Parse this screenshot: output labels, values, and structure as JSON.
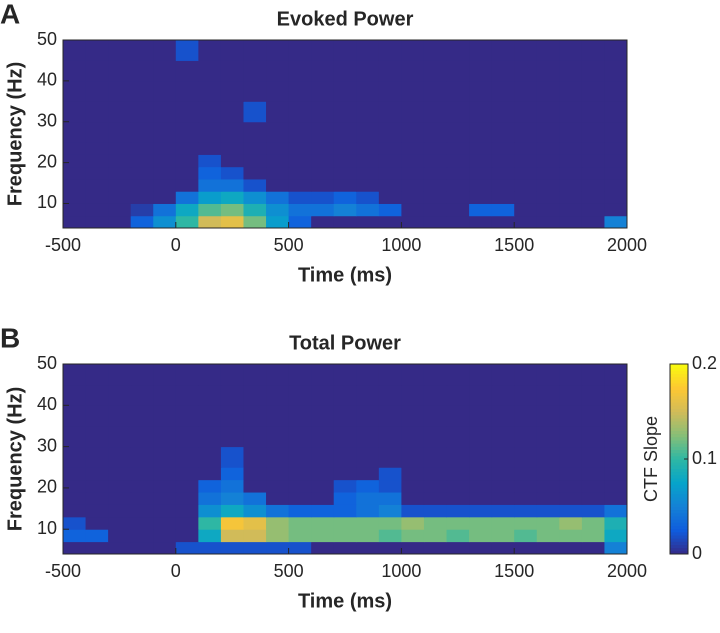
{
  "chart_data": [
    {
      "type": "heatmap",
      "panel_label": "A",
      "title": "Evoked Power",
      "xlabel": "Time (ms)",
      "ylabel": "Frequency (Hz)",
      "xlim": [
        -500,
        2000
      ],
      "xticks": [
        -500,
        0,
        500,
        1000,
        1500,
        2000
      ],
      "ylim": [
        4,
        50
      ],
      "yticks": [
        10,
        20,
        30,
        40,
        50
      ],
      "colormap": "parula",
      "clim": [
        0,
        0.2
      ],
      "x_edges": [
        -500,
        -400,
        -300,
        -200,
        -100,
        0,
        100,
        200,
        300,
        400,
        500,
        600,
        700,
        800,
        900,
        1000,
        1100,
        1200,
        1300,
        1400,
        1500,
        1600,
        1700,
        1800,
        1900,
        2000
      ],
      "y_edges": [
        4,
        7,
        10,
        13,
        16,
        19,
        22,
        25,
        30,
        35,
        40,
        45,
        50
      ],
      "z": [
        [
          0,
          0,
          0,
          0.03,
          0.06,
          0.1,
          0.15,
          0.16,
          0.12,
          0.07,
          0.03,
          0,
          0,
          0,
          0,
          0,
          0,
          0,
          0,
          0,
          0,
          0,
          0,
          0,
          0.05
        ],
        [
          0,
          0,
          0,
          0.01,
          0.04,
          0.08,
          0.11,
          0.12,
          0.09,
          0.06,
          0.04,
          0.04,
          0.05,
          0.04,
          0.03,
          0,
          0,
          0,
          0.03,
          0.03,
          0,
          0,
          0,
          0,
          0
        ],
        [
          0,
          0,
          0,
          0,
          0,
          0.04,
          0.07,
          0.08,
          0.06,
          0.04,
          0.02,
          0.02,
          0.03,
          0.02,
          0,
          0,
          0,
          0,
          0,
          0,
          0,
          0,
          0,
          0,
          0
        ],
        [
          0,
          0,
          0,
          0,
          0,
          0,
          0.04,
          0.04,
          0.02,
          0,
          0,
          0,
          0,
          0,
          0,
          0,
          0,
          0,
          0,
          0,
          0,
          0,
          0,
          0,
          0
        ],
        [
          0,
          0,
          0,
          0,
          0,
          0,
          0.03,
          0.02,
          0,
          0,
          0,
          0,
          0,
          0,
          0,
          0,
          0,
          0,
          0,
          0,
          0,
          0,
          0,
          0,
          0
        ],
        [
          0,
          0,
          0,
          0,
          0,
          0,
          0.02,
          0,
          0,
          0,
          0,
          0,
          0,
          0,
          0,
          0,
          0,
          0,
          0,
          0,
          0,
          0,
          0,
          0,
          0
        ],
        [
          0,
          0,
          0,
          0,
          0,
          0,
          0,
          0,
          0,
          0,
          0,
          0,
          0,
          0,
          0,
          0,
          0,
          0,
          0,
          0,
          0,
          0,
          0,
          0,
          0
        ],
        [
          0,
          0,
          0,
          0,
          0,
          0,
          0,
          0,
          0,
          0,
          0,
          0,
          0,
          0,
          0,
          0,
          0,
          0,
          0,
          0,
          0,
          0,
          0,
          0,
          0
        ],
        [
          0,
          0,
          0,
          0,
          0,
          0,
          0,
          0,
          0.02,
          0,
          0,
          0,
          0,
          0,
          0,
          0,
          0,
          0,
          0,
          0,
          0,
          0,
          0,
          0,
          0
        ],
        [
          0,
          0,
          0,
          0,
          0,
          0,
          0,
          0,
          0,
          0,
          0,
          0,
          0,
          0,
          0,
          0,
          0,
          0,
          0,
          0,
          0,
          0,
          0,
          0,
          0
        ],
        [
          0,
          0,
          0,
          0,
          0,
          0,
          0,
          0,
          0,
          0,
          0,
          0,
          0,
          0,
          0,
          0,
          0,
          0,
          0,
          0,
          0,
          0,
          0,
          0,
          0
        ],
        [
          0,
          0,
          0,
          0,
          0,
          0.02,
          0,
          0,
          0,
          0,
          0,
          0,
          0,
          0,
          0,
          0,
          0,
          0,
          0,
          0,
          0,
          0,
          0,
          0,
          0
        ]
      ]
    },
    {
      "type": "heatmap",
      "panel_label": "B",
      "title": "Total Power",
      "xlabel": "Time (ms)",
      "ylabel": "Frequency (Hz)",
      "xlim": [
        -500,
        2000
      ],
      "xticks": [
        -500,
        0,
        500,
        1000,
        1500,
        2000
      ],
      "ylim": [
        4,
        50
      ],
      "yticks": [
        10,
        20,
        30,
        40,
        50
      ],
      "colormap": "parula",
      "clim": [
        0,
        0.2
      ],
      "colorbar": {
        "label": "CTF Slope",
        "ticks": [
          0,
          0.1,
          0.2
        ]
      },
      "x_edges": [
        -500,
        -400,
        -300,
        -200,
        -100,
        0,
        100,
        200,
        300,
        400,
        500,
        600,
        700,
        800,
        900,
        1000,
        1100,
        1200,
        1300,
        1400,
        1500,
        1600,
        1700,
        1800,
        1900,
        2000
      ],
      "y_edges": [
        4,
        7,
        10,
        13,
        16,
        19,
        22,
        25,
        30,
        35,
        40,
        45,
        50
      ],
      "z": [
        [
          0,
          0,
          0,
          0,
          0,
          0.02,
          0.02,
          0.02,
          0.02,
          0.02,
          0.02,
          0,
          0,
          0,
          0,
          0,
          0,
          0,
          0,
          0,
          0,
          0,
          0,
          0,
          0.05
        ],
        [
          0.03,
          0.03,
          0,
          0,
          0,
          0,
          0.08,
          0.15,
          0.15,
          0.13,
          0.12,
          0.12,
          0.12,
          0.12,
          0.11,
          0.12,
          0.12,
          0.11,
          0.12,
          0.12,
          0.11,
          0.12,
          0.12,
          0.12,
          0.08
        ],
        [
          0.02,
          0,
          0,
          0,
          0,
          0,
          0.1,
          0.17,
          0.16,
          0.13,
          0.12,
          0.12,
          0.12,
          0.12,
          0.12,
          0.13,
          0.12,
          0.12,
          0.12,
          0.12,
          0.12,
          0.12,
          0.13,
          0.12,
          0.09
        ],
        [
          0,
          0,
          0,
          0,
          0,
          0,
          0.06,
          0.08,
          0.06,
          0.04,
          0.03,
          0.03,
          0.03,
          0.04,
          0.05,
          0.02,
          0.02,
          0.02,
          0.02,
          0.02,
          0.02,
          0.02,
          0.02,
          0.02,
          0.04
        ],
        [
          0,
          0,
          0,
          0,
          0,
          0,
          0.04,
          0.05,
          0.04,
          0,
          0,
          0,
          0.03,
          0.04,
          0.04,
          0,
          0,
          0,
          0,
          0,
          0,
          0,
          0,
          0,
          0
        ],
        [
          0,
          0,
          0,
          0,
          0,
          0,
          0.03,
          0.04,
          0,
          0,
          0,
          0,
          0.02,
          0.03,
          0.02,
          0,
          0,
          0,
          0,
          0,
          0,
          0,
          0,
          0,
          0
        ],
        [
          0,
          0,
          0,
          0,
          0,
          0,
          0,
          0.03,
          0,
          0,
          0,
          0,
          0,
          0,
          0.02,
          0,
          0,
          0,
          0,
          0,
          0,
          0,
          0,
          0,
          0
        ],
        [
          0,
          0,
          0,
          0,
          0,
          0,
          0,
          0.02,
          0,
          0,
          0,
          0,
          0,
          0,
          0,
          0,
          0,
          0,
          0,
          0,
          0,
          0,
          0,
          0,
          0
        ],
        [
          0,
          0,
          0,
          0,
          0,
          0,
          0,
          0,
          0,
          0,
          0,
          0,
          0,
          0,
          0,
          0,
          0,
          0,
          0,
          0,
          0,
          0,
          0,
          0,
          0
        ],
        [
          0,
          0,
          0,
          0,
          0,
          0,
          0,
          0,
          0,
          0,
          0,
          0,
          0,
          0,
          0,
          0,
          0,
          0,
          0,
          0,
          0,
          0,
          0,
          0,
          0
        ],
        [
          0,
          0,
          0,
          0,
          0,
          0,
          0,
          0,
          0,
          0,
          0,
          0,
          0,
          0,
          0,
          0,
          0,
          0,
          0,
          0,
          0,
          0,
          0,
          0,
          0
        ],
        [
          0,
          0,
          0,
          0,
          0,
          0,
          0,
          0,
          0,
          0,
          0,
          0,
          0,
          0,
          0,
          0,
          0,
          0,
          0,
          0,
          0,
          0,
          0,
          0,
          0
        ]
      ]
    }
  ]
}
